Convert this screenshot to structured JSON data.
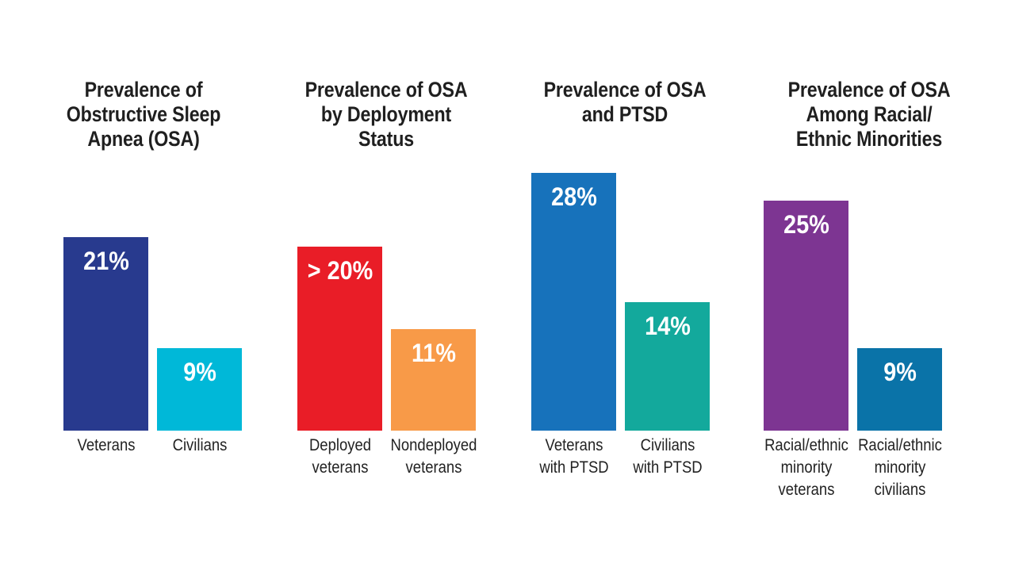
{
  "chart_data": [
    {
      "type": "bar",
      "title": "Prevalence of\nObstructive Sleep\nApnea (OSA)",
      "categories": [
        "Veterans",
        "Civilians"
      ],
      "values": [
        21,
        9
      ],
      "value_labels": [
        "21%",
        "9%"
      ],
      "colors": [
        "#283a8e",
        "#00b8d8"
      ],
      "ylim": [
        0,
        30
      ]
    },
    {
      "type": "bar",
      "title": "Prevalence of OSA\nby Deployment\nStatus",
      "categories": [
        "Deployed\nveterans",
        "Nondeployed\nveterans"
      ],
      "values": [
        20,
        11
      ],
      "value_labels": [
        "> 20%",
        "11%"
      ],
      "colors": [
        "#e91d27",
        "#f89a48"
      ],
      "ylim": [
        0,
        30
      ]
    },
    {
      "type": "bar",
      "title": "Prevalence of OSA\nand PTSD",
      "categories": [
        "Veterans\nwith PTSD",
        "Civilians\nwith PTSD"
      ],
      "values": [
        28,
        14
      ],
      "value_labels": [
        "28%",
        "14%"
      ],
      "colors": [
        "#1772bb",
        "#13a99c"
      ],
      "ylim": [
        0,
        30
      ]
    },
    {
      "type": "bar",
      "title": "Prevalence of OSA\nAmong Racial/\nEthnic Minorities",
      "categories": [
        "Racial/ethnic\nminority\nveterans",
        "Racial/ethnic\nminority\ncivilians"
      ],
      "values": [
        25,
        9
      ],
      "value_labels": [
        "25%",
        "9%"
      ],
      "colors": [
        "#7d3592",
        "#0a73a8"
      ],
      "ylim": [
        0,
        30
      ]
    }
  ]
}
